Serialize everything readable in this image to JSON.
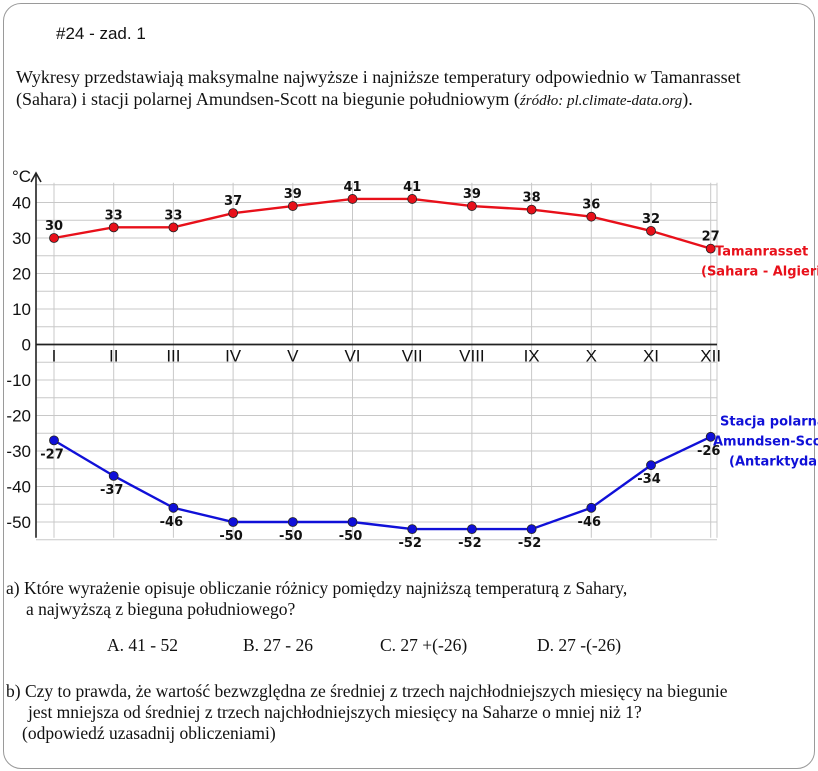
{
  "heading": "#24 - zad. 1",
  "intro": {
    "line1": "Wykresy przedstawiają maksymalne najwyższe i najniższe temperatury odpowiednio w Tamanrasset",
    "line2": "(Sahara) i stacji polarnej Amundsen-Scott na biegunie południowym (",
    "source": "źródło: pl.climate-data.org",
    "line2_end": ")."
  },
  "chart_data": {
    "type": "line",
    "unit_label": "°C",
    "categories": [
      "I",
      "II",
      "III",
      "IV",
      "V",
      "VI",
      "VII",
      "VIII",
      "IX",
      "X",
      "XI",
      "XII"
    ],
    "y_ticks": [
      "40",
      "30",
      "20",
      "10",
      "0",
      "-10",
      "-20",
      "-30",
      "-40",
      "-50"
    ],
    "ylim": [
      -55,
      45
    ],
    "grid": true,
    "series": [
      {
        "name_line1": "Tamanrasset",
        "name_line2": "(Sahara - Algieria)",
        "color": "#e8101a",
        "values": [
          30,
          33,
          33,
          37,
          39,
          41,
          41,
          39,
          38,
          36,
          32,
          27
        ],
        "labels": [
          "30",
          "33",
          "33",
          "37",
          "39",
          "41",
          "41",
          "39",
          "38",
          "36",
          "32",
          "27"
        ]
      },
      {
        "name_line1": "Stacja polarna",
        "name_line2": "Amundsen-Scott",
        "name_line3": "(Antarktyda)",
        "color": "#1010d8",
        "values": [
          -27,
          -37,
          -46,
          -50,
          -50,
          -50,
          -52,
          -52,
          -52,
          -46,
          -34,
          -26
        ],
        "labels": [
          "-27",
          "-37",
          "-46",
          "-50",
          "-50",
          "-50",
          "-52",
          "-52",
          "-52",
          "-46",
          "-34",
          "-26"
        ]
      }
    ]
  },
  "question_a": {
    "line1": "a) Które wyrażenie opisuje obliczanie różnicy pomiędzy najniższą temperaturą z Sahary,",
    "line2": "a najwyższą z bieguna południowego?",
    "options": [
      "A.  41 - 52",
      "B.  27 - 26",
      "C.  27 +(-26)",
      "D.  27 -(-26)"
    ]
  },
  "question_b": {
    "line1": "b) Czy to prawda, że wartość bezwzględna ze średniej z trzech najchłodniejszych miesięcy na biegunie",
    "line2": "jest mniejsza od średniej z trzech najchłodniejszych miesięcy na Saharze o mniej niż 1?",
    "line3": "(odpowiedź uzasadnij obliczeniami)"
  }
}
